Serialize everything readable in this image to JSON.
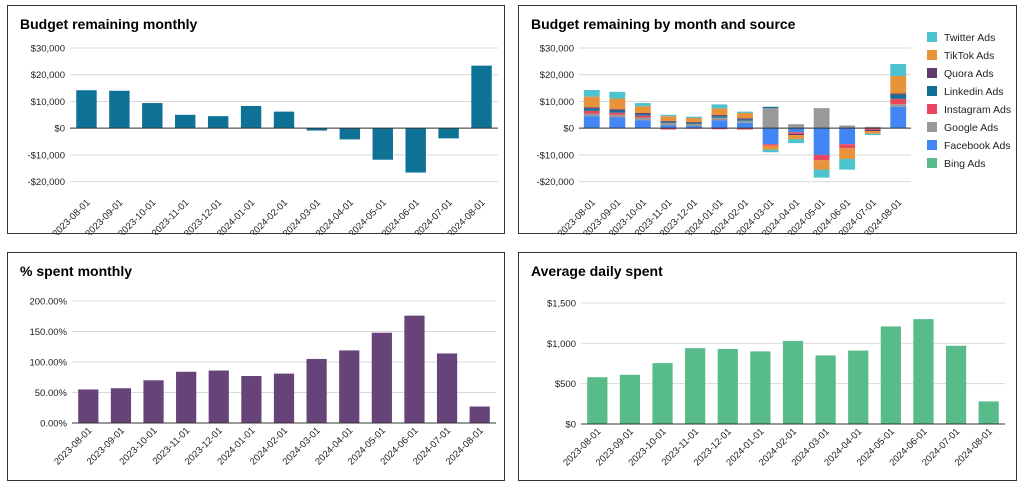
{
  "chart_data": [
    {
      "id": "c1",
      "type": "bar",
      "title": "Budget remaining monthly",
      "categories": [
        "2023-08-01",
        "2023-09-01",
        "2023-10-01",
        "2023-11-01",
        "2023-12-01",
        "2024-01-01",
        "2024-02-01",
        "2024-03-01",
        "2024-04-01",
        "2024-05-01",
        "2024-06-01",
        "2024-07-01",
        "2024-08-01"
      ],
      "values": [
        14200,
        14000,
        9400,
        5000,
        4500,
        8300,
        6200,
        -900,
        -4200,
        -11800,
        -16600,
        -3800,
        23400
      ],
      "ylim": [
        -25000,
        30000
      ],
      "ticks": [
        -20000,
        -10000,
        0,
        10000,
        20000,
        30000
      ],
      "tick_labels": [
        "-$20,000",
        "-$10,000",
        "$0",
        "$10,000",
        "$20,000",
        "$30,000"
      ],
      "color": "#0e7196",
      "xlabel": "",
      "ylabel": ""
    },
    {
      "id": "c2",
      "type": "bar",
      "stacked": true,
      "title": "Budget remaining by month and source",
      "categories": [
        "2023-08-01",
        "2023-09-01",
        "2023-10-01",
        "2023-11-01",
        "2023-12-01",
        "2024-01-01",
        "2024-02-01",
        "2024-03-01",
        "2024-04-01",
        "2024-05-01",
        "2024-06-01",
        "2024-07-01",
        "2024-08-01"
      ],
      "series": [
        {
          "name": "Bing Ads",
          "color": "#57bb8a",
          "values": [
            0,
            0,
            0,
            0,
            0,
            0,
            0,
            0,
            0,
            0,
            0,
            0,
            0
          ]
        },
        {
          "name": "Facebook Ads",
          "color": "#4285f4",
          "values": [
            4500,
            4000,
            3000,
            1000,
            800,
            3000,
            2000,
            -6000,
            -1500,
            -10000,
            -6000,
            0,
            8000
          ]
        },
        {
          "name": "Google Ads",
          "color": "#999999",
          "values": [
            1000,
            1000,
            1000,
            1000,
            800,
            1000,
            800,
            7500,
            1500,
            7500,
            1000,
            500,
            1000
          ]
        },
        {
          "name": "Instagram Ads",
          "color": "#e8475f",
          "values": [
            1000,
            800,
            700,
            -500,
            -200,
            -400,
            -500,
            -500,
            -600,
            -2000,
            -1500,
            -600,
            2000
          ]
        },
        {
          "name": "Linkedin Ads",
          "color": "#0e7196",
          "values": [
            800,
            800,
            500,
            400,
            400,
            500,
            500,
            500,
            0,
            0,
            0,
            0,
            1500
          ]
        },
        {
          "name": "Quora Ads",
          "color": "#5e3a6e",
          "values": [
            500,
            500,
            500,
            300,
            300,
            400,
            400,
            0,
            -500,
            0,
            0,
            -500,
            500
          ]
        },
        {
          "name": "TikTok Ads",
          "color": "#e8923a",
          "values": [
            4000,
            4000,
            2500,
            1800,
            1500,
            2500,
            2000,
            -1500,
            -1500,
            -3500,
            -4000,
            -1000,
            6500
          ]
        },
        {
          "name": "Twitter Ads",
          "color": "#4cc3cf",
          "values": [
            2500,
            2500,
            1200,
            500,
            500,
            1500,
            500,
            -1000,
            -1500,
            -3000,
            -4000,
            -500,
            4500
          ]
        }
      ],
      "legend_order": [
        "Twitter Ads",
        "TikTok Ads",
        "Quora Ads",
        "Linkedin Ads",
        "Instagram Ads",
        "Google Ads",
        "Facebook Ads",
        "Bing Ads"
      ],
      "ylim": [
        -25000,
        30000
      ],
      "ticks": [
        -20000,
        -10000,
        0,
        10000,
        20000,
        30000
      ],
      "tick_labels": [
        "-$20,000",
        "-$10,000",
        "$0",
        "$10,000",
        "$20,000",
        "$30,000"
      ],
      "legend_position": "right",
      "xlabel": "",
      "ylabel": ""
    },
    {
      "id": "c3",
      "type": "bar",
      "title": "% spent monthly",
      "categories": [
        "2023-08-01",
        "2023-09-01",
        "2023-10-01",
        "2023-11-01",
        "2023-12-01",
        "2024-01-01",
        "2024-02-01",
        "2024-03-01",
        "2024-04-01",
        "2024-05-01",
        "2024-06-01",
        "2024-07-01",
        "2024-08-01"
      ],
      "values": [
        55,
        57,
        70,
        84,
        86,
        77,
        81,
        105,
        119,
        148,
        176,
        114,
        27
      ],
      "ylim": [
        0,
        200
      ],
      "ticks": [
        0,
        50,
        100,
        150,
        200
      ],
      "tick_labels": [
        "0.00%",
        "50.00%",
        "100.00%",
        "150.00%",
        "200.00%"
      ],
      "color": "#66447a",
      "xlabel": "",
      "ylabel": ""
    },
    {
      "id": "c4",
      "type": "bar",
      "title": "Average daily spent",
      "categories": [
        "2023-08-01",
        "2023-09-01",
        "2023-10-01",
        "2023-11-01",
        "2023-12-01",
        "2024-01-01",
        "2024-02-01",
        "2024-03-01",
        "2024-04-01",
        "2024-05-01",
        "2024-06-01",
        "2024-07-01",
        "2024-08-01"
      ],
      "values": [
        580,
        610,
        755,
        940,
        930,
        900,
        1030,
        850,
        910,
        1210,
        1300,
        970,
        280
      ],
      "ylim": [
        0,
        1500
      ],
      "ticks": [
        0,
        500,
        1000,
        1500
      ],
      "tick_labels": [
        "$0",
        "$500",
        "$1,000",
        "$1,500"
      ],
      "color": "#57bb8a",
      "xlabel": "",
      "ylabel": ""
    }
  ]
}
